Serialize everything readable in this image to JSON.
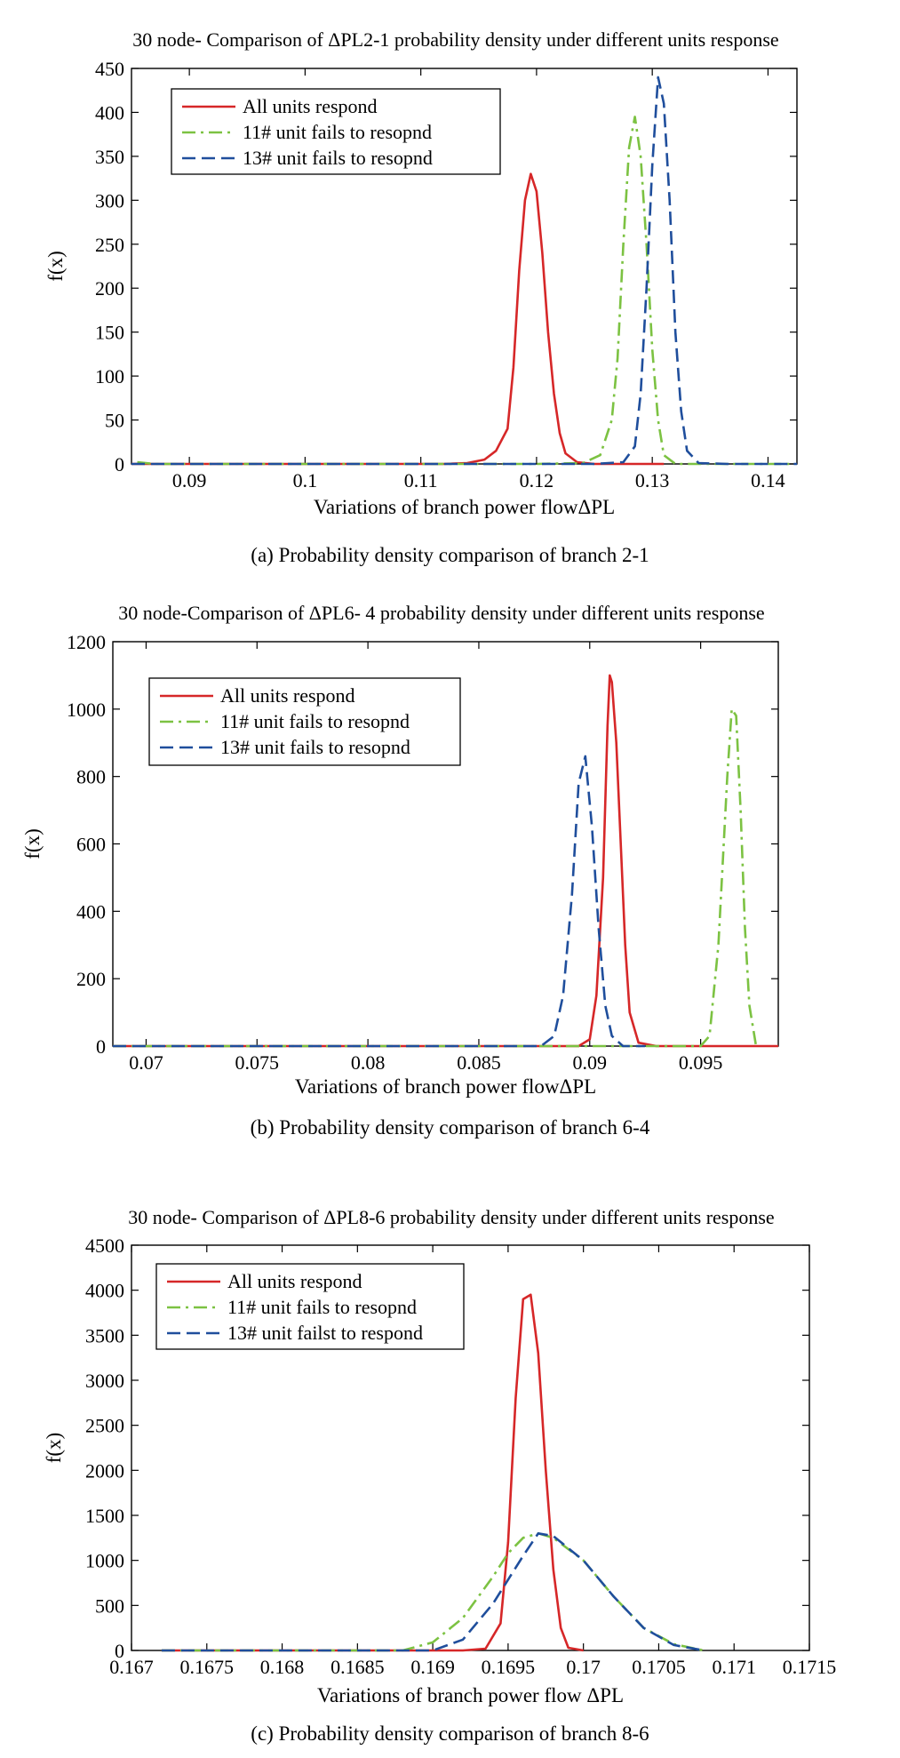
{
  "chart_data": [
    {
      "type": "line",
      "title": "30 node- Comparison of ΔPL2-1 probability density under different units response",
      "xlabel": "Variations of branch power flowΔPL",
      "ylabel": "f(x)",
      "xlim": [
        0.085,
        0.1425
      ],
      "ylim": [
        0,
        450
      ],
      "xticks": [
        0.09,
        0.1,
        0.11,
        0.12,
        0.13,
        0.14
      ],
      "xtick_labels": [
        "0.09",
        "0.1",
        "0.11",
        "0.12",
        "0.13",
        "0.14"
      ],
      "yticks": [
        0,
        50,
        100,
        150,
        200,
        250,
        300,
        350,
        400,
        450
      ],
      "ytick_labels": [
        "0",
        "50",
        "100",
        "150",
        "200",
        "250",
        "300",
        "350",
        "400",
        "450"
      ],
      "grid": false,
      "legend_position": "top-left",
      "caption": "(a) Probability density comparison of branch 2-1",
      "series": [
        {
          "name": "All units respond",
          "color": "#d62728",
          "style": "solid",
          "x": [
            0.085,
            0.1,
            0.112,
            0.114,
            0.1155,
            0.1165,
            0.1175,
            0.118,
            0.1185,
            0.119,
            0.1195,
            0.12,
            0.1205,
            0.121,
            0.1215,
            0.122,
            0.1225,
            0.1235,
            0.125,
            0.131
          ],
          "y": [
            0,
            0,
            0,
            1,
            5,
            15,
            40,
            110,
            220,
            300,
            330,
            310,
            240,
            150,
            80,
            35,
            12,
            2,
            0,
            0
          ]
        },
        {
          "name": "11# unit fails to resopnd",
          "color": "#7cc242",
          "style": "dashdot",
          "x": [
            0.0855,
            0.087,
            0.09,
            0.12,
            0.124,
            0.1255,
            0.1265,
            0.127,
            0.1275,
            0.128,
            0.1285,
            0.129,
            0.1295,
            0.13,
            0.1305,
            0.131,
            0.132,
            0.142
          ],
          "y": [
            2,
            0,
            0,
            0,
            1,
            10,
            50,
            120,
            250,
            360,
            395,
            350,
            250,
            130,
            50,
            10,
            0,
            0
          ]
        },
        {
          "name": "13# unit fails to resopnd",
          "color": "#1f4e9c",
          "style": "dashed",
          "x": [
            0.085,
            0.1,
            0.125,
            0.1275,
            0.1285,
            0.129,
            0.1295,
            0.13,
            0.1305,
            0.131,
            0.1315,
            0.132,
            0.1325,
            0.133,
            0.134,
            0.1365,
            0.1425
          ],
          "y": [
            0,
            0,
            0,
            2,
            20,
            80,
            200,
            340,
            440,
            410,
            300,
            150,
            60,
            15,
            1,
            0,
            0
          ]
        }
      ]
    },
    {
      "type": "line",
      "title": "30 node-Comparison of ΔPL6- 4 probability density under different units response",
      "xlabel": "Variations of branch power flowΔPL",
      "ylabel": "f(x)",
      "xlim": [
        0.0685,
        0.0985
      ],
      "ylim": [
        0,
        1200
      ],
      "xticks": [
        0.07,
        0.075,
        0.08,
        0.085,
        0.09,
        0.095
      ],
      "xtick_labels": [
        "0.07",
        "0.075",
        "0.08",
        "0.085",
        "0.09",
        "0.095"
      ],
      "yticks": [
        0,
        200,
        400,
        600,
        800,
        1000,
        1200
      ],
      "ytick_labels": [
        "0",
        "200",
        "400",
        "600",
        "800",
        "1000",
        "1200"
      ],
      "grid": false,
      "legend_position": "top-left",
      "caption": "(b) Probability density comparison of branch 6-4",
      "series": [
        {
          "name": "All units respond",
          "color": "#d62728",
          "style": "solid",
          "x": [
            0.0685,
            0.085,
            0.0895,
            0.09,
            0.0903,
            0.0906,
            0.0908,
            0.0909,
            0.091,
            0.0912,
            0.0914,
            0.0916,
            0.0918,
            0.0922,
            0.093,
            0.0985
          ],
          "y": [
            0,
            0,
            0,
            20,
            150,
            500,
            950,
            1100,
            1080,
            900,
            600,
            300,
            100,
            10,
            0,
            0
          ]
        },
        {
          "name": "11# unit fails to resopnd",
          "color": "#7cc242",
          "style": "dashdot",
          "x": [
            0.0685,
            0.09,
            0.095,
            0.0954,
            0.0958,
            0.0962,
            0.0964,
            0.0966,
            0.0968,
            0.097,
            0.0972,
            0.0975
          ],
          "y": [
            0,
            0,
            0,
            30,
            300,
            800,
            1000,
            980,
            700,
            350,
            120,
            0
          ]
        },
        {
          "name": "13# unit fails to resopnd",
          "color": "#1f4e9c",
          "style": "dashed",
          "x": [
            0.0685,
            0.085,
            0.0878,
            0.0884,
            0.0888,
            0.0892,
            0.0895,
            0.0898,
            0.0901,
            0.0904,
            0.0907,
            0.091,
            0.0915,
            0.0925
          ],
          "y": [
            0,
            0,
            0,
            30,
            150,
            450,
            780,
            860,
            650,
            350,
            120,
            30,
            0,
            0
          ]
        }
      ]
    },
    {
      "type": "line",
      "title": "30 node- Comparison of ΔPL8-6 probability density under different units response",
      "xlabel": "Variations of branch power flow    ΔPL",
      "ylabel": "f(x)",
      "xlim": [
        0.167,
        0.1715
      ],
      "ylim": [
        0,
        4500
      ],
      "xticks": [
        0.167,
        0.1675,
        0.168,
        0.1685,
        0.169,
        0.1695,
        0.17,
        0.1705,
        0.171,
        0.1715
      ],
      "xtick_labels": [
        "0.167",
        "0.1675",
        "0.168",
        "0.1685",
        "0.169",
        "0.1695",
        "0.17",
        "0.1705",
        "0.171",
        "0.1715"
      ],
      "yticks": [
        0,
        500,
        1000,
        1500,
        2000,
        2500,
        3000,
        3500,
        4000,
        4500
      ],
      "ytick_labels": [
        "0",
        "500",
        "1000",
        "1500",
        "2000",
        "2500",
        "3000",
        "3500",
        "4000",
        "4500"
      ],
      "grid": false,
      "legend_position": "top-left",
      "caption": "(c) Probability density comparison of branch 8-6",
      "series": [
        {
          "name": "All units respond",
          "color": "#d62728",
          "style": "solid",
          "x": [
            0.1672,
            0.1692,
            0.16935,
            0.16945,
            0.1695,
            0.16955,
            0.1696,
            0.16965,
            0.1697,
            0.16975,
            0.1698,
            0.16985,
            0.1699,
            0.17
          ],
          "y": [
            0,
            0,
            20,
            300,
            1200,
            2800,
            3900,
            3950,
            3300,
            2000,
            900,
            250,
            30,
            0
          ]
        },
        {
          "name": "11# unit fails to resopnd",
          "color": "#7cc242",
          "style": "dashdot",
          "x": [
            0.1672,
            0.1688,
            0.169,
            0.1692,
            0.1694,
            0.1695,
            0.1696,
            0.1697,
            0.1698,
            0.17,
            0.1702,
            0.1704,
            0.1706,
            0.1708
          ],
          "y": [
            0,
            0,
            90,
            360,
            820,
            1080,
            1250,
            1300,
            1250,
            1000,
            600,
            250,
            70,
            0
          ]
        },
        {
          "name": "13# unit failst to respond",
          "color": "#1f4e9c",
          "style": "dashed",
          "x": [
            0.1672,
            0.169,
            0.1692,
            0.1694,
            0.1696,
            0.1697,
            0.1698,
            0.17,
            0.1702,
            0.1704,
            0.1706,
            0.1708
          ],
          "y": [
            0,
            0,
            120,
            520,
            1050,
            1300,
            1270,
            1000,
            600,
            250,
            60,
            0
          ]
        }
      ]
    }
  ]
}
